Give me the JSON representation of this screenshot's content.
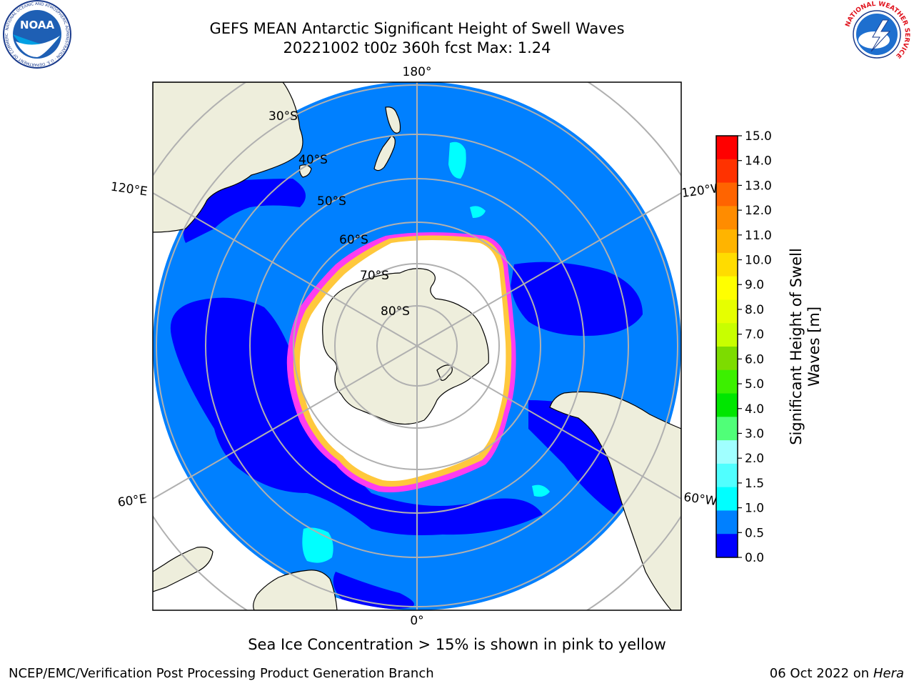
{
  "header": {
    "title_line1": "GEFS MEAN Antarctic Significant Height of Swell Waves",
    "title_line2": "20221002 t00z 360h fcst   Max: 1.24"
  },
  "logos": {
    "noaa_text": "NOAA",
    "noaa_ring_text": "NATIONAL OCEANIC AND ATMOSPHERIC ADMINISTRATION · U.S. DEPARTMENT OF COMMERCE",
    "nws_ring_text": "NATIONAL WEATHER SERVICE"
  },
  "map": {
    "projection": "south-polar-stereographic",
    "lon_labels": [
      "180°",
      "120°E",
      "120°W",
      "60°E",
      "60°W",
      "0°"
    ],
    "lat_labels": [
      "30°S",
      "40°S",
      "50°S",
      "60°S",
      "70°S",
      "80°S"
    ],
    "colors": {
      "ocean_base": "#0080ff",
      "ocean_low": "#0000ff",
      "ocean_mid": "#00ffff",
      "land": "#eeeedc",
      "sea_ice": "#ffffff",
      "ice_edge_pink": "#ff3cf0",
      "ice_edge_yellow": "#ffc83c",
      "grid": "#b0b0b0"
    }
  },
  "colorbar": {
    "label": "Significant Height of Swell Waves [m]",
    "label_line1": "Significant Height of Swell",
    "label_line2": "Waves [m]",
    "ticks": [
      "15.0",
      "14.0",
      "13.0",
      "12.0",
      "11.0",
      "10.0",
      "9.0",
      "8.0",
      "7.0",
      "6.0",
      "5.0",
      "4.0",
      "3.0",
      "2.0",
      "1.5",
      "1.0",
      "0.5",
      "0.0"
    ],
    "colors_top_to_bottom": [
      "#ff0000",
      "#ff3200",
      "#ff6400",
      "#ff8c00",
      "#ffb400",
      "#ffdc00",
      "#ffff00",
      "#e6ff00",
      "#c8ff00",
      "#7ddc00",
      "#3cf000",
      "#00e600",
      "#50ff78",
      "#a0ffff",
      "#50ffff",
      "#00ffff",
      "#0080ff",
      "#0000ff"
    ]
  },
  "footer": {
    "ice_note": "Sea Ice Concentration > 15% is shown in pink to yellow",
    "left": "NCEP/EMC/Verification Post Processing Product Generation Branch",
    "date": "06 Oct 2022 on ",
    "machine": "Hera"
  }
}
